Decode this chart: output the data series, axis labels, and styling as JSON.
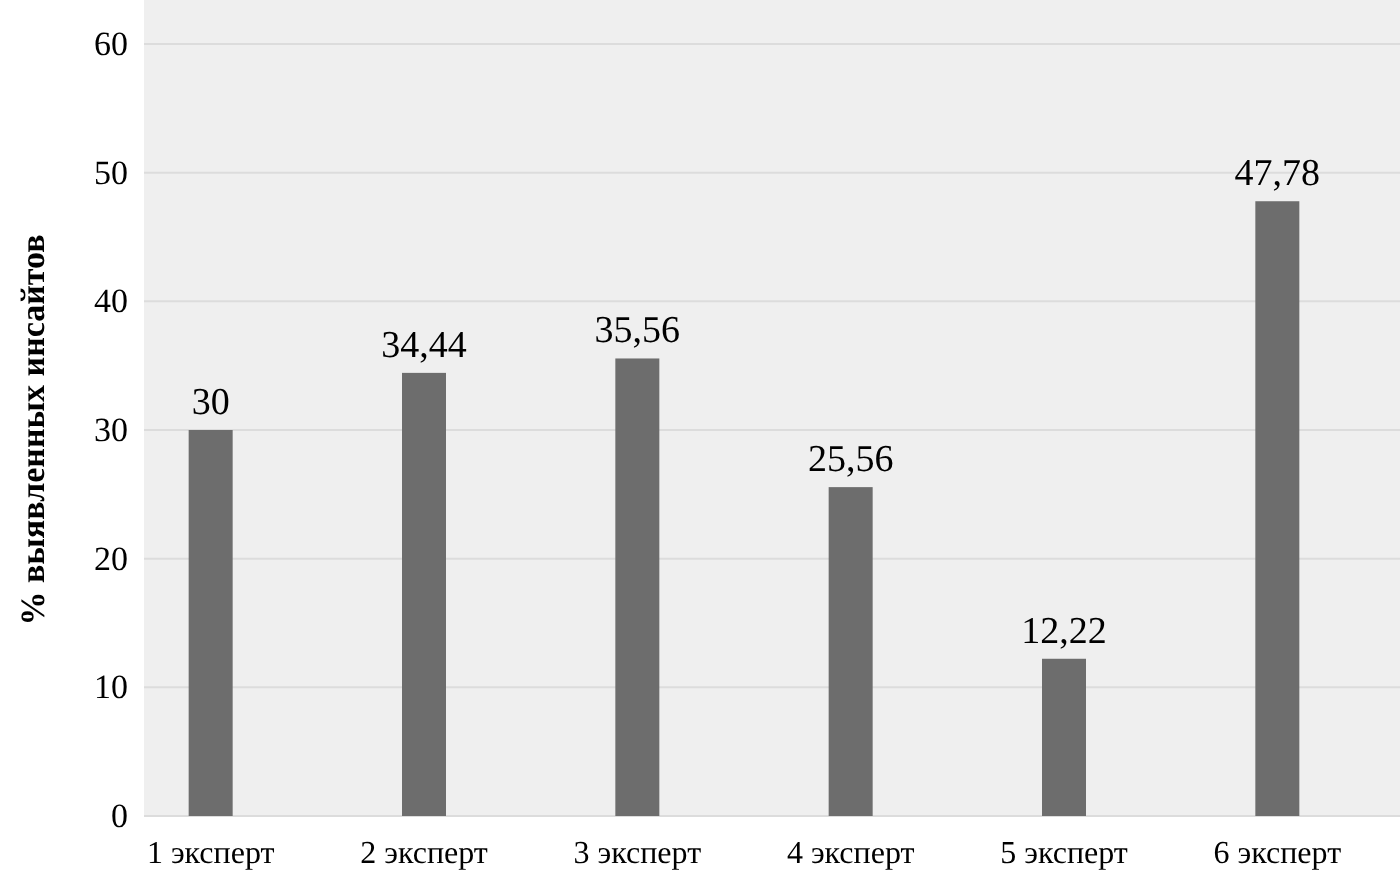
{
  "chart_data": {
    "type": "bar",
    "ylabel": "% выявленных инсайтов",
    "categories": [
      "1 эксперт",
      "2 эксперт",
      "3 эксперт",
      "4 эксперт",
      "5 эксперт",
      "6 эксперт"
    ],
    "values": [
      30,
      34.44,
      35.56,
      25.56,
      12.22,
      47.78
    ],
    "value_labels": [
      "30",
      "34,44",
      "35,56",
      "25,56",
      "12,22",
      "47,78"
    ],
    "color": "#6d6d6d",
    "ylim": [
      0,
      60
    ],
    "yticks": [
      0,
      10,
      20,
      30,
      40,
      50,
      60
    ],
    "grid": "y"
  }
}
